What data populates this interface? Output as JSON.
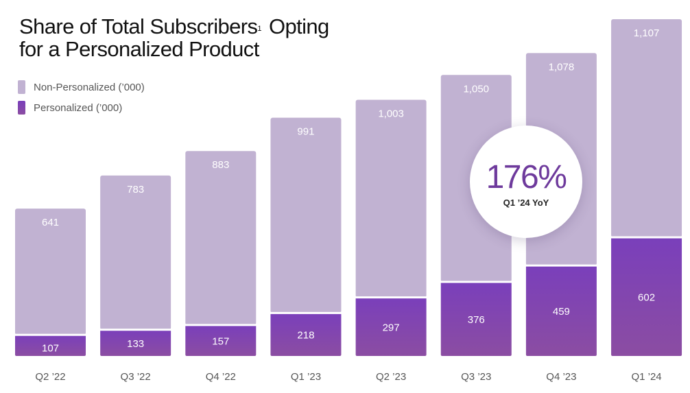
{
  "chart_data": {
    "type": "bar",
    "stacked": true,
    "title_main": "Share of Total Subscribers",
    "title_footnote": "1",
    "title_rest": " Opting",
    "title_line2": "for a Personalized Product",
    "categories": [
      "Q2 ’22",
      "Q3 ’22",
      "Q4 ’22",
      "Q1 ’23",
      "Q2 ’23",
      "Q3 ’23",
      "Q4 ’23",
      "Q1 ’24"
    ],
    "series": [
      {
        "name": "Personalized (’000)",
        "values": [
          107,
          133,
          157,
          218,
          297,
          376,
          459,
          602
        ],
        "color": "#7a3fbb"
      },
      {
        "name": "Non-Personalized (’000)",
        "values": [
          641,
          783,
          883,
          991,
          1003,
          1050,
          1078,
          1107
        ],
        "color": "#c1b2d2"
      }
    ],
    "annotation": {
      "value": "176%",
      "label": "Q1 ’24 YoY"
    },
    "ylim": [
      0,
      1709
    ],
    "grid": false,
    "legend": "top-left"
  },
  "colors": {
    "non_personalized": "#c1b2d2",
    "personalized_top": "#7a3fbb",
    "personalized_bottom": "#8b4da2",
    "annotation_text": "#6e3a9c"
  }
}
